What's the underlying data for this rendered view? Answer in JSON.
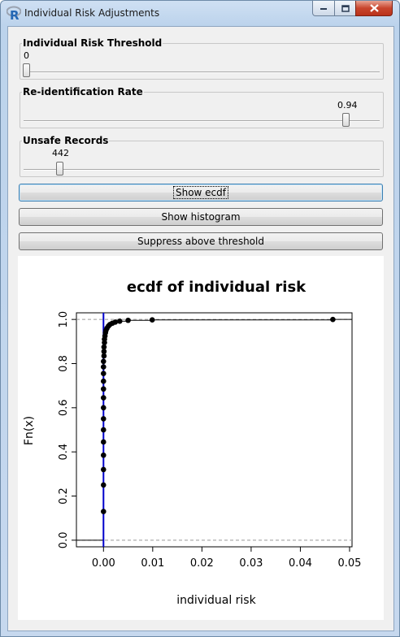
{
  "window": {
    "title": "Individual Risk Adjustments",
    "app_icon_letter": "R"
  },
  "sliders": [
    {
      "label": "Individual Risk Threshold",
      "value": "0",
      "level": 0.0
    },
    {
      "label": "Re-identification Rate",
      "value": "0.94",
      "level": 0.94
    },
    {
      "label": "Unsafe Records",
      "value": "442",
      "level": 0.1
    }
  ],
  "buttons": {
    "show_ecdf": "Show ecdf",
    "show_histogram": "Show histogram",
    "suppress": "Suppress above threshold"
  },
  "chart_data": {
    "type": "scatter",
    "title": "ecdf of individual risk",
    "xlabel": "individual risk",
    "ylabel": "Fn(x)",
    "xlim": [
      -0.0055,
      0.0505
    ],
    "ylim": [
      -0.03,
      1.03
    ],
    "x_ticks": [
      "0.00",
      "0.01",
      "0.02",
      "0.03",
      "0.04",
      "0.05"
    ],
    "y_ticks": [
      "0.0",
      "0.2",
      "0.4",
      "0.6",
      "0.8",
      "1.0"
    ],
    "threshold_line": {
      "x": 0.0,
      "color": "#0000cc"
    },
    "points": [
      [
        0.0,
        0.13
      ],
      [
        0.0,
        0.25
      ],
      [
        0.0,
        0.32
      ],
      [
        0.0,
        0.385
      ],
      [
        0.0,
        0.445
      ],
      [
        0.0,
        0.5
      ],
      [
        0.0,
        0.55
      ],
      [
        0.0,
        0.6
      ],
      [
        0.0,
        0.645
      ],
      [
        0.0,
        0.685
      ],
      [
        0.0,
        0.72
      ],
      [
        0.0,
        0.755
      ],
      [
        0.0,
        0.785
      ],
      [
        0.0,
        0.81
      ],
      [
        0.0001,
        0.835
      ],
      [
        0.0001,
        0.855
      ],
      [
        0.0001,
        0.875
      ],
      [
        0.0002,
        0.895
      ],
      [
        0.0002,
        0.91
      ],
      [
        0.0003,
        0.925
      ],
      [
        0.0004,
        0.94
      ],
      [
        0.0005,
        0.95
      ],
      [
        0.0007,
        0.96
      ],
      [
        0.001,
        0.97
      ],
      [
        0.0013,
        0.977
      ],
      [
        0.0018,
        0.983
      ],
      [
        0.0024,
        0.988
      ],
      [
        0.0033,
        0.992
      ],
      [
        0.005,
        0.996
      ],
      [
        0.0099,
        0.998
      ],
      [
        0.0466,
        1.0
      ]
    ]
  }
}
